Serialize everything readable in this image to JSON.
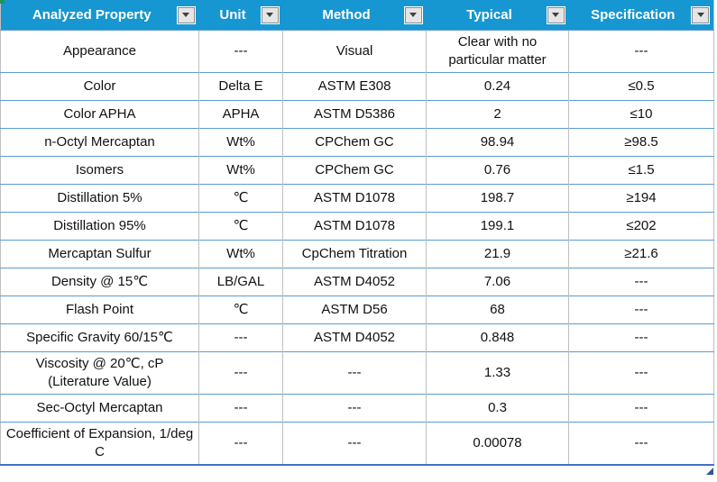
{
  "table": {
    "columns": [
      {
        "label": "Analyzed Property"
      },
      {
        "label": "Unit"
      },
      {
        "label": "Method"
      },
      {
        "label": "Typical"
      },
      {
        "label": "Specification"
      }
    ],
    "rows": [
      [
        "Appearance",
        "---",
        "Visual",
        "Clear with no particular matter",
        "---"
      ],
      [
        "Color",
        "Delta E",
        "ASTM E308",
        "0.24",
        "≤0.5"
      ],
      [
        "Color APHA",
        "APHA",
        "ASTM D5386",
        "2",
        "≤10"
      ],
      [
        "n-Octyl Mercaptan",
        "Wt%",
        "CPChem GC",
        "98.94",
        "≥98.5"
      ],
      [
        "Isomers",
        "Wt%",
        "CPChem GC",
        "0.76",
        "≤1.5"
      ],
      [
        "Distillation 5%",
        "℃",
        "ASTM D1078",
        "198.7",
        "≥194"
      ],
      [
        "Distillation 95%",
        "℃",
        "ASTM D1078",
        "199.1",
        "≤202"
      ],
      [
        "Mercaptan Sulfur",
        "Wt%",
        "CpChem Titration",
        "21.9",
        "≥21.6"
      ],
      [
        "Density @ 15℃",
        "LB/GAL",
        "ASTM D4052",
        "7.06",
        "---"
      ],
      [
        "Flash Point",
        "℃",
        "ASTM D56",
        "68",
        "---"
      ],
      [
        "Specific Gravity 60/15℃",
        "---",
        "ASTM D4052",
        "0.848",
        "---"
      ],
      [
        "Viscosity @ 20℃, cP (Literature Value)",
        "---",
        "---",
        "1.33",
        "---"
      ],
      [
        "Sec-Octyl Mercaptan",
        "---",
        "---",
        "0.3",
        "---"
      ],
      [
        "Coefficient of Expansion, 1/deg C",
        "---",
        "---",
        "0.00078",
        "---"
      ]
    ],
    "icons": {
      "filter_dropdown": "chevron-down-icon"
    },
    "colors": {
      "header_background": "#1697d1",
      "header_text": "#ffffff",
      "row_divider": "#5b9bd5",
      "column_divider": "#bfbfbf",
      "table_bottom_border": "#4472c4",
      "resize_handle": "#2f5597",
      "corner_accent_green": "#1e9655"
    }
  }
}
